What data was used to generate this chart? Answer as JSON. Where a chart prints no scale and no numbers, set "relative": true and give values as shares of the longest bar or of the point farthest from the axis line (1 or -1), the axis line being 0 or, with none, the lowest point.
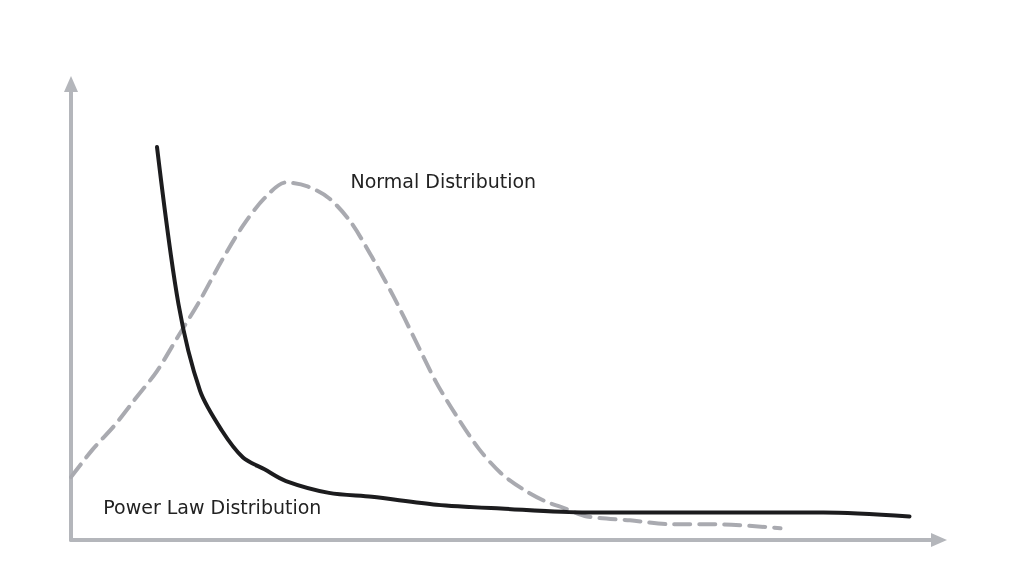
{
  "chart_data": {
    "type": "line",
    "relative": true,
    "legend": false,
    "marker": "none",
    "grid": false,
    "categories": [
      null,
      null,
      null,
      null,
      null,
      null,
      null,
      null,
      null,
      null,
      null,
      null,
      null,
      null,
      null,
      null,
      null,
      null,
      null,
      null,
      null,
      null,
      null,
      null,
      null,
      null,
      null,
      null,
      null,
      null,
      null,
      null,
      null,
      null,
      null,
      null,
      null,
      null,
      null,
      null,
      null
    ],
    "series": [
      {
        "name": "Normal Distribution",
        "color": "#a9aab0",
        "line_style": "dashed",
        "values": [
          0.16,
          0.23,
          0.29,
          0.36,
          0.43,
          0.52,
          0.61,
          0.71,
          0.8,
          0.87,
          0.91,
          0.9,
          0.87,
          0.81,
          0.72,
          0.62,
          0.51,
          0.4,
          0.31,
          0.23,
          0.17,
          0.13,
          0.1,
          0.08,
          0.06,
          null,
          0.05,
          null,
          0.04,
          null,
          0.04,
          null,
          null,
          0.03,
          null,
          null,
          null,
          null,
          null,
          null,
          null
        ]
      },
      {
        "name": "Power Law Distribution",
        "color": "#1c1c1e",
        "line_style": "solid",
        "values": [
          null,
          null,
          null,
          null,
          1,
          0.6,
          0.38,
          0.28,
          0.21,
          0.18,
          0.15,
          null,
          0.12,
          null,
          0.11,
          null,
          null,
          0.09,
          null,
          null,
          0.08,
          null,
          null,
          null,
          0.07,
          null,
          null,
          null,
          null,
          null,
          0.07,
          null,
          null,
          null,
          null,
          0.07,
          null,
          null,
          null,
          0.06,
          null
        ]
      }
    ]
  }
}
